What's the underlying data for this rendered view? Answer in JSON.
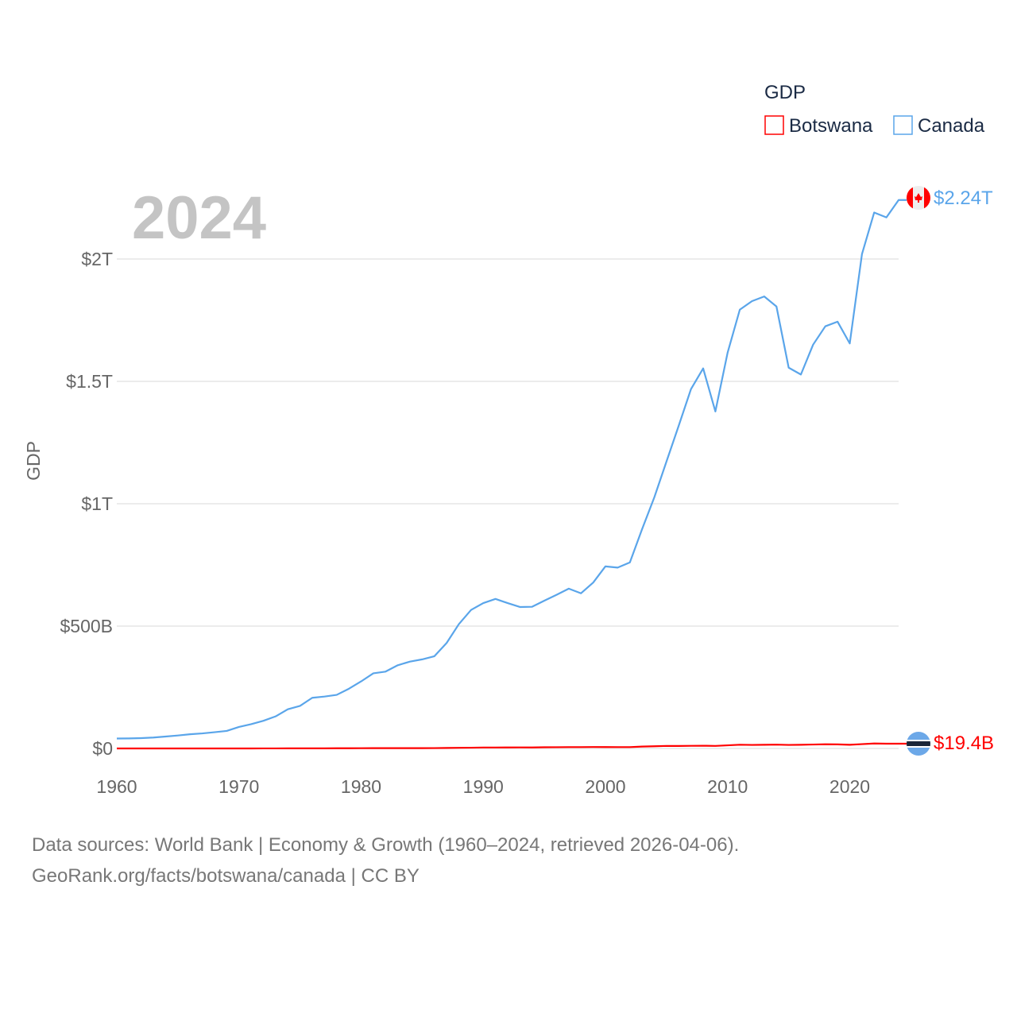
{
  "chart_data": {
    "type": "line",
    "title": "GDP",
    "ylabel": "GDP",
    "xlabel": "",
    "year_label": "2024",
    "xlim": [
      1960,
      2024
    ],
    "ylim": [
      0,
      2.3
    ],
    "y_unit": "trillion USD",
    "x_ticks": [
      "1960",
      "1970",
      "1980",
      "1990",
      "2000",
      "2010",
      "2020"
    ],
    "y_ticks": [
      {
        "value": 0,
        "label": "$0"
      },
      {
        "value": 0.5,
        "label": "$500B"
      },
      {
        "value": 1,
        "label": "$1T"
      },
      {
        "value": 1.5,
        "label": "$1.5T"
      },
      {
        "value": 2,
        "label": "$2T"
      }
    ],
    "grid": true,
    "legend_position": "top-right",
    "x": [
      1960,
      1961,
      1962,
      1963,
      1964,
      1965,
      1966,
      1967,
      1968,
      1969,
      1970,
      1971,
      1972,
      1973,
      1974,
      1975,
      1976,
      1977,
      1978,
      1979,
      1980,
      1981,
      1982,
      1983,
      1984,
      1985,
      1986,
      1987,
      1988,
      1989,
      1990,
      1991,
      1992,
      1993,
      1994,
      1995,
      1996,
      1997,
      1998,
      1999,
      2000,
      2001,
      2002,
      2003,
      2004,
      2005,
      2006,
      2007,
      2008,
      2009,
      2010,
      2011,
      2012,
      2013,
      2014,
      2015,
      2016,
      2017,
      2018,
      2019,
      2020,
      2021,
      2022,
      2023,
      2024
    ],
    "series": [
      {
        "name": "Botswana",
        "color": "#ff0000",
        "end_label": "$19.4B",
        "flag": "botswana-flag",
        "values": [
          3e-05,
          3e-05,
          3e-05,
          4e-05,
          4e-05,
          5e-05,
          5e-05,
          6e-05,
          7e-05,
          8e-05,
          8e-05,
          0.0001,
          0.00015,
          0.0002,
          0.0003,
          0.0004,
          0.0004,
          0.0005,
          0.0007,
          0.0009,
          0.00106,
          0.0011,
          0.0011,
          0.0012,
          0.0012,
          0.0011,
          0.0014,
          0.002,
          0.0027,
          0.003,
          0.0038,
          0.0039,
          0.0041,
          0.0042,
          0.0041,
          0.0048,
          0.005,
          0.0055,
          0.0055,
          0.0059,
          0.0058,
          0.0055,
          0.0055,
          0.0077,
          0.0089,
          0.0103,
          0.0101,
          0.0107,
          0.0111,
          0.0103,
          0.0128,
          0.0153,
          0.0144,
          0.0149,
          0.0157,
          0.0144,
          0.0151,
          0.0161,
          0.017,
          0.0166,
          0.015,
          0.0176,
          0.0203,
          0.0194,
          0.0194
        ]
      },
      {
        "name": "Canada",
        "color": "#5aa5ea",
        "end_label": "$2.24T",
        "flag": "canada-flag",
        "values": [
          0.0405,
          0.0409,
          0.0422,
          0.0446,
          0.0486,
          0.0529,
          0.058,
          0.0614,
          0.0663,
          0.0717,
          0.0879,
          0.0993,
          0.113,
          0.131,
          0.16,
          0.174,
          0.207,
          0.212,
          0.219,
          0.244,
          0.274,
          0.307,
          0.314,
          0.34,
          0.355,
          0.364,
          0.377,
          0.431,
          0.508,
          0.566,
          0.594,
          0.611,
          0.594,
          0.578,
          0.579,
          0.604,
          0.628,
          0.653,
          0.634,
          0.678,
          0.744,
          0.739,
          0.76,
          0.896,
          1.026,
          1.173,
          1.319,
          1.468,
          1.553,
          1.377,
          1.617,
          1.793,
          1.828,
          1.847,
          1.806,
          1.556,
          1.528,
          1.65,
          1.725,
          1.744,
          1.655,
          2.02,
          2.19,
          2.17,
          2.241
        ]
      }
    ]
  },
  "source": {
    "line1": "Data sources: World Bank | Economy & Growth (1960–2024, retrieved 2026-04-06).",
    "line2": "GeoRank.org/facts/botswana/canada | CC BY"
  }
}
